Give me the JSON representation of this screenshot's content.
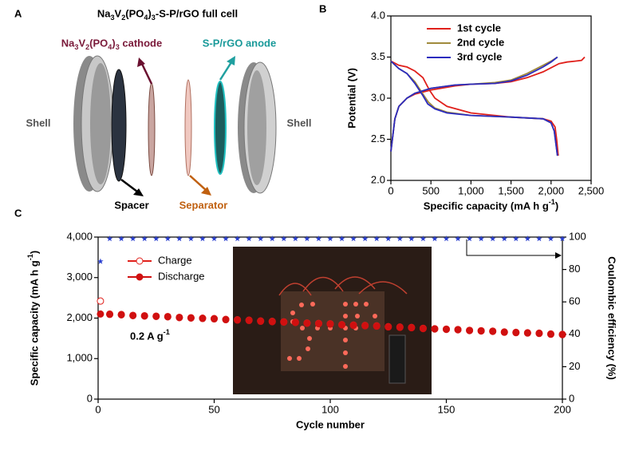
{
  "diagram": {
    "panel_label": "A",
    "title": "Na3V2(PO4)3-S-P/rGO full cell",
    "labels": {
      "cathode": "Na3V2(PO4)3 cathode",
      "anode": "S-P/rGO anode",
      "shell_left": "Shell",
      "shell_right": "Shell",
      "spacer": "Spacer",
      "separator": "Separator"
    }
  },
  "chart_data": [
    {
      "type": "line",
      "panel_label": "B",
      "x_label": "Specific capacity (mA h g-1)",
      "y_label": "Potential (V)",
      "xlim": [
        0,
        2500
      ],
      "xticks": [
        0,
        500,
        {
          "value": 1000,
          "label": "1,000"
        },
        {
          "value": 1500,
          "label": "1,500"
        },
        {
          "value": 2000,
          "label": "2,000"
        },
        {
          "value": 2500,
          "label": "2,500"
        }
      ],
      "ylim": [
        2.0,
        4.0
      ],
      "yticks": [
        {
          "value": 2,
          "label": "2.0"
        },
        2.5,
        {
          "value": 3,
          "label": "3.0"
        },
        3.5,
        {
          "value": 4,
          "label": "4.0"
        }
      ],
      "legend": "upper left",
      "series": [
        {
          "name": "1st cycle",
          "color": "#e0201b",
          "x": [
            0,
            50,
            100,
            200,
            300,
            500,
            800,
            1000,
            1300,
            1500,
            1700,
            1900,
            2100,
            2200,
            2300,
            2380,
            2420,
            null,
            0,
            100,
            200,
            300,
            400,
            480,
            550,
            700,
            1000,
            1500,
            1900,
            2000,
            2050,
            2070,
            2090
          ],
          "values": [
            2.35,
            2.75,
            2.9,
            3.0,
            3.05,
            3.1,
            3.15,
            3.17,
            3.18,
            3.2,
            3.25,
            3.32,
            3.42,
            3.44,
            3.45,
            3.46,
            3.5,
            null,
            3.45,
            3.4,
            3.38,
            3.33,
            3.25,
            3.1,
            3.0,
            2.9,
            2.82,
            2.77,
            2.75,
            2.72,
            2.65,
            2.5,
            2.3
          ]
        },
        {
          "name": "2nd cycle",
          "color": "#a08a3c",
          "x": [
            0,
            50,
            100,
            200,
            300,
            500,
            800,
            1000,
            1300,
            1500,
            1700,
            1900,
            2000,
            2080,
            null,
            0,
            100,
            200,
            300,
            400,
            470,
            550,
            700,
            1000,
            1500,
            1900,
            2000,
            2040,
            2060,
            2080
          ],
          "values": [
            2.35,
            2.75,
            2.9,
            3.0,
            3.06,
            3.12,
            3.16,
            3.17,
            3.19,
            3.22,
            3.3,
            3.4,
            3.45,
            3.5,
            null,
            3.45,
            3.36,
            3.3,
            3.2,
            3.05,
            2.95,
            2.88,
            2.83,
            2.79,
            2.77,
            2.75,
            2.7,
            2.6,
            2.45,
            2.3
          ]
        },
        {
          "name": "3rd cycle",
          "color": "#2b2bbf",
          "x": [
            0,
            50,
            100,
            200,
            300,
            500,
            800,
            1000,
            1300,
            1500,
            1700,
            1900,
            2000,
            2080,
            null,
            0,
            100,
            200,
            300,
            400,
            460,
            550,
            700,
            1000,
            1500,
            1900,
            2000,
            2040,
            2060,
            2080
          ],
          "values": [
            2.35,
            2.75,
            2.9,
            3.0,
            3.06,
            3.12,
            3.16,
            3.17,
            3.18,
            3.21,
            3.28,
            3.38,
            3.44,
            3.5,
            null,
            3.45,
            3.36,
            3.3,
            3.18,
            3.03,
            2.93,
            2.87,
            2.82,
            2.79,
            2.77,
            2.75,
            2.7,
            2.6,
            2.45,
            2.3
          ]
        }
      ]
    },
    {
      "type": "scatter",
      "panel_label": "C",
      "x_label": "Cycle number",
      "y_label": "Specific capacity (mA h g-1)",
      "y2_label": "Coulombic efficiency (%)",
      "annotation": "0.2 A g-1",
      "legend": "upper left",
      "xlim": [
        0,
        200
      ],
      "xticks": [
        0,
        50,
        100,
        150,
        200
      ],
      "ylim": [
        0,
        4000
      ],
      "yticks": [
        0,
        {
          "value": 1000,
          "label": "1,000"
        },
        {
          "value": 2000,
          "label": "2,000"
        },
        {
          "value": 3000,
          "label": "3,000"
        },
        {
          "value": 4000,
          "label": "4,000"
        }
      ],
      "y2lim": [
        0,
        100
      ],
      "y2ticks": [
        0,
        20,
        40,
        60,
        80,
        100
      ],
      "x": [
        1,
        5,
        10,
        15,
        20,
        25,
        30,
        35,
        40,
        45,
        50,
        55,
        60,
        65,
        70,
        75,
        80,
        85,
        90,
        95,
        100,
        105,
        110,
        115,
        120,
        125,
        130,
        135,
        140,
        145,
        150,
        155,
        160,
        165,
        170,
        175,
        180,
        185,
        190,
        195,
        200
      ],
      "series": [
        {
          "name": "Charge",
          "color": "#e0201b",
          "marker": "open-circle",
          "values": [
            2420,
            2100,
            2090,
            2070,
            2060,
            2050,
            2040,
            2020,
            2010,
            2000,
            1990,
            1970,
            1960,
            1950,
            1930,
            1920,
            1910,
            1900,
            1880,
            1870,
            1860,
            1840,
            1830,
            1820,
            1810,
            1790,
            1780,
            1770,
            1750,
            1740,
            1730,
            1720,
            1700,
            1690,
            1680,
            1660,
            1650,
            1640,
            1630,
            1610,
            1600
          ]
        },
        {
          "name": "Discharge",
          "color": "#d01010",
          "marker": "filled-circle",
          "values": [
            2100,
            2090,
            2080,
            2060,
            2050,
            2040,
            2030,
            2010,
            2000,
            1990,
            1980,
            1960,
            1950,
            1940,
            1920,
            1910,
            1900,
            1890,
            1870,
            1860,
            1850,
            1830,
            1820,
            1810,
            1800,
            1780,
            1770,
            1760,
            1740,
            1730,
            1720,
            1710,
            1690,
            1680,
            1670,
            1650,
            1640,
            1630,
            1620,
            1600,
            1590
          ]
        },
        {
          "color": "#2a3fd0",
          "marker": "star",
          "axis": "y2",
          "values": [
            85,
            99,
            99,
            99,
            99,
            99,
            99,
            99,
            99,
            99,
            99,
            99,
            99,
            99,
            99,
            99,
            99,
            99,
            99,
            99,
            99,
            99,
            99,
            99,
            99,
            99,
            99,
            99,
            99,
            99,
            99,
            99,
            99,
            99,
            99,
            99,
            99,
            99,
            99,
            99,
            99
          ]
        }
      ]
    }
  ]
}
